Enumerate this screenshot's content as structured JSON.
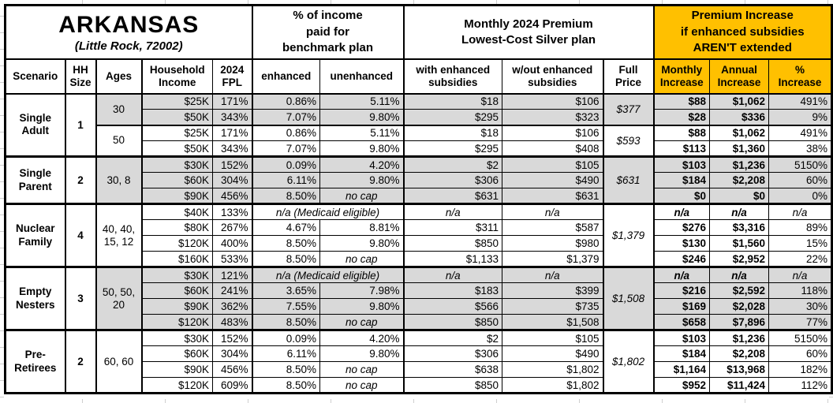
{
  "title": {
    "state": "ARKANSAS",
    "location": "(Little Rock, 72002)"
  },
  "groups": {
    "income_pct": "% of income\npaid for\nbenchmark plan",
    "premium": "Monthly 2024 Premium\nLowest-Cost Silver plan",
    "increase": "Premium Increase\nif enhanced subsidies\nAREN'T extended"
  },
  "columns": {
    "scenario": "Scenario",
    "hh_size": "HH\nSize",
    "ages": "Ages",
    "income": "Household\nIncome",
    "fpl": "2024\nFPL",
    "enhanced": "enhanced",
    "unenhanced": "unenhanced",
    "with_sub": "with enhanced\nsubsidies",
    "wout_sub": "w/out enhanced\nsubsidies",
    "full_price": "Full\nPrice",
    "monthly": "Monthly\nIncrease",
    "annual": "Annual\nIncrease",
    "pct": "%\nIncrease"
  },
  "colors": {
    "accent_orange": "#FFC000",
    "row_gray": "#D9D9D9",
    "border": "#000000"
  },
  "labels": {
    "medicaid_note": "n/a (Medicaid eligible)",
    "na": "n/a",
    "no_cap": "no cap"
  },
  "sections": [
    {
      "scenario": "Single Adult",
      "hh_size": "1",
      "subsections": [
        {
          "ages": "30",
          "shaded": true,
          "full_price": "$377",
          "rows": [
            {
              "income": "$25K",
              "fpl": "171%",
              "enhanced": "0.86%",
              "unenhanced": "5.11%",
              "with_sub": "$18",
              "wout_sub": "$106",
              "monthly": "$88",
              "annual": "$1,062",
              "pct": "491%"
            },
            {
              "income": "$50K",
              "fpl": "343%",
              "enhanced": "7.07%",
              "unenhanced": "9.80%",
              "with_sub": "$295",
              "wout_sub": "$323",
              "monthly": "$28",
              "annual": "$336",
              "pct": "9%"
            }
          ]
        },
        {
          "ages": "50",
          "shaded": false,
          "full_price": "$593",
          "rows": [
            {
              "income": "$25K",
              "fpl": "171%",
              "enhanced": "0.86%",
              "unenhanced": "5.11%",
              "with_sub": "$18",
              "wout_sub": "$106",
              "monthly": "$88",
              "annual": "$1,062",
              "pct": "491%"
            },
            {
              "income": "$50K",
              "fpl": "343%",
              "enhanced": "7.07%",
              "unenhanced": "9.80%",
              "with_sub": "$295",
              "wout_sub": "$408",
              "monthly": "$113",
              "annual": "$1,360",
              "pct": "38%"
            }
          ]
        }
      ]
    },
    {
      "scenario": "Single Parent",
      "hh_size": "2",
      "subsections": [
        {
          "ages": "30, 8",
          "shaded": true,
          "full_price": "$631",
          "rows": [
            {
              "income": "$30K",
              "fpl": "152%",
              "enhanced": "0.09%",
              "unenhanced": "4.20%",
              "with_sub": "$2",
              "wout_sub": "$105",
              "monthly": "$103",
              "annual": "$1,236",
              "pct": "5150%"
            },
            {
              "income": "$60K",
              "fpl": "304%",
              "enhanced": "6.11%",
              "unenhanced": "9.80%",
              "with_sub": "$306",
              "wout_sub": "$490",
              "monthly": "$184",
              "annual": "$2,208",
              "pct": "60%"
            },
            {
              "income": "$90K",
              "fpl": "456%",
              "enhanced": "8.50%",
              "unenhanced": "no cap",
              "with_sub": "$631",
              "wout_sub": "$631",
              "monthly": "$0",
              "annual": "$0",
              "pct": "0%"
            }
          ]
        }
      ]
    },
    {
      "scenario": "Nuclear Family",
      "hh_size": "4",
      "subsections": [
        {
          "ages": "40, 40,\n15, 12",
          "shaded": false,
          "full_price": "$1,379",
          "rows": [
            {
              "income": "$40K",
              "fpl": "133%",
              "medicaid": true
            },
            {
              "income": "$80K",
              "fpl": "267%",
              "enhanced": "4.67%",
              "unenhanced": "8.81%",
              "with_sub": "$311",
              "wout_sub": "$587",
              "monthly": "$276",
              "annual": "$3,316",
              "pct": "89%"
            },
            {
              "income": "$120K",
              "fpl": "400%",
              "enhanced": "8.50%",
              "unenhanced": "9.80%",
              "with_sub": "$850",
              "wout_sub": "$980",
              "monthly": "$130",
              "annual": "$1,560",
              "pct": "15%"
            },
            {
              "income": "$160K",
              "fpl": "533%",
              "enhanced": "8.50%",
              "unenhanced": "no cap",
              "with_sub": "$1,133",
              "wout_sub": "$1,379",
              "monthly": "$246",
              "annual": "$2,952",
              "pct": "22%"
            }
          ]
        }
      ]
    },
    {
      "scenario": "Empty Nesters",
      "hh_size": "3",
      "subsections": [
        {
          "ages": "50, 50,\n20",
          "shaded": true,
          "full_price": "$1,508",
          "rows": [
            {
              "income": "$30K",
              "fpl": "121%",
              "medicaid": true
            },
            {
              "income": "$60K",
              "fpl": "241%",
              "enhanced": "3.65%",
              "unenhanced": "7.98%",
              "with_sub": "$183",
              "wout_sub": "$399",
              "monthly": "$216",
              "annual": "$2,592",
              "pct": "118%"
            },
            {
              "income": "$90K",
              "fpl": "362%",
              "enhanced": "7.55%",
              "unenhanced": "9.80%",
              "with_sub": "$566",
              "wout_sub": "$735",
              "monthly": "$169",
              "annual": "$2,028",
              "pct": "30%"
            },
            {
              "income": "$120K",
              "fpl": "483%",
              "enhanced": "8.50%",
              "unenhanced": "no cap",
              "with_sub": "$850",
              "wout_sub": "$1,508",
              "monthly": "$658",
              "annual": "$7,896",
              "pct": "77%"
            }
          ]
        }
      ]
    },
    {
      "scenario": "Pre-Retirees",
      "hh_size": "2",
      "subsections": [
        {
          "ages": "60, 60",
          "shaded": false,
          "full_price": "$1,802",
          "rows": [
            {
              "income": "$30K",
              "fpl": "152%",
              "enhanced": "0.09%",
              "unenhanced": "4.20%",
              "with_sub": "$2",
              "wout_sub": "$105",
              "monthly": "$103",
              "annual": "$1,236",
              "pct": "5150%"
            },
            {
              "income": "$60K",
              "fpl": "304%",
              "enhanced": "6.11%",
              "unenhanced": "9.80%",
              "with_sub": "$306",
              "wout_sub": "$490",
              "monthly": "$184",
              "annual": "$2,208",
              "pct": "60%"
            },
            {
              "income": "$90K",
              "fpl": "456%",
              "enhanced": "8.50%",
              "unenhanced": "no cap",
              "with_sub": "$638",
              "wout_sub": "$1,802",
              "monthly": "$1,164",
              "annual": "$13,968",
              "pct": "182%"
            },
            {
              "income": "$120K",
              "fpl": "609%",
              "enhanced": "8.50%",
              "unenhanced": "no cap",
              "with_sub": "$850",
              "wout_sub": "$1,802",
              "monthly": "$952",
              "annual": "$11,424",
              "pct": "112%"
            }
          ]
        }
      ]
    }
  ]
}
